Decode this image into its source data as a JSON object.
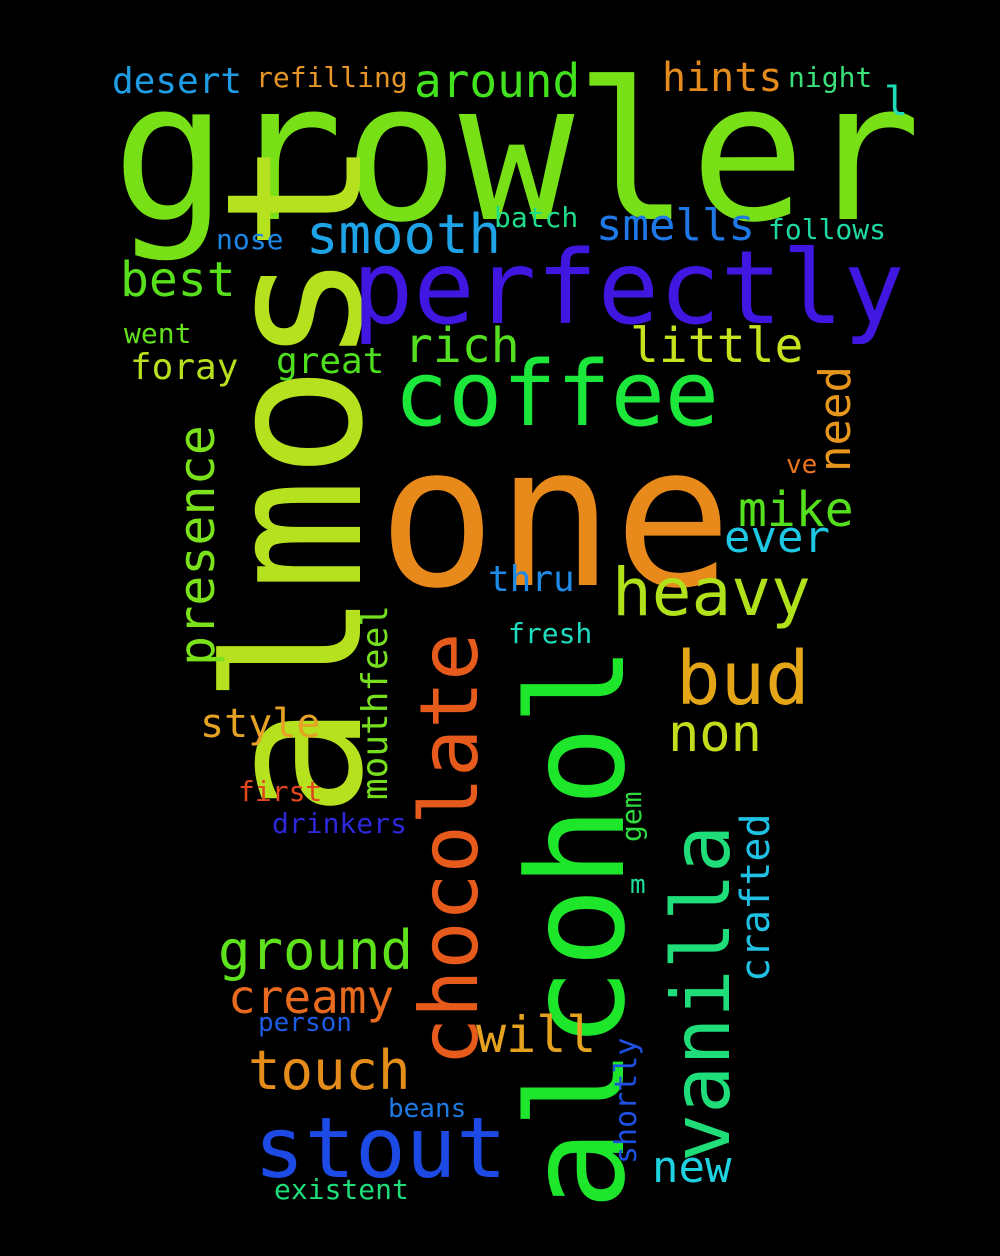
{
  "background": "#000000",
  "words": [
    {
      "text": "growler",
      "color": "#78e016"
    },
    {
      "text": "almost",
      "color": "#b5e11e"
    },
    {
      "text": "one",
      "color": "#e8891b"
    },
    {
      "text": "alcohol",
      "color": "#1ee62a"
    },
    {
      "text": "perfectly",
      "color": "#4017e0"
    },
    {
      "text": "coffee",
      "color": "#1be83b"
    },
    {
      "text": "chocolate",
      "color": "#e65a1c"
    },
    {
      "text": "vanilla",
      "color": "#1fdd78"
    },
    {
      "text": "stout",
      "color": "#1d4ae5"
    },
    {
      "text": "heavy",
      "color": "#b1e11a"
    },
    {
      "text": "bud",
      "color": "#e4a617"
    },
    {
      "text": "smooth",
      "color": "#1da3e6"
    },
    {
      "text": "presence",
      "color": "#7ae11a"
    },
    {
      "text": "ground",
      "color": "#5ee21c"
    },
    {
      "text": "touch",
      "color": "#e48d1a"
    },
    {
      "text": "creamy",
      "color": "#e76a1e"
    },
    {
      "text": "around",
      "color": "#43e21f"
    },
    {
      "text": "best",
      "color": "#58e01c"
    },
    {
      "text": "rich",
      "color": "#53e020"
    },
    {
      "text": "little",
      "color": "#c7e21e"
    },
    {
      "text": "smells",
      "color": "#1e78e6"
    },
    {
      "text": "hints",
      "color": "#e58a1d"
    },
    {
      "text": "mike",
      "color": "#54e01d"
    },
    {
      "text": "ever",
      "color": "#1ec8e4"
    },
    {
      "text": "need",
      "color": "#e6961d"
    },
    {
      "text": "non",
      "color": "#c3dc1c"
    },
    {
      "text": "will",
      "color": "#e4a21e"
    },
    {
      "text": "new",
      "color": "#1fd2e2"
    },
    {
      "text": "style",
      "color": "#e6a224"
    },
    {
      "text": "mouthfeel",
      "color": "#76e01e"
    },
    {
      "text": "crafted",
      "color": "#1fc1e4"
    },
    {
      "text": "desert",
      "color": "#1e9ce4"
    },
    {
      "text": "refilling",
      "color": "#e49628"
    },
    {
      "text": "foray",
      "color": "#b8e01c"
    },
    {
      "text": "great",
      "color": "#4ee01e"
    },
    {
      "text": "thru",
      "color": "#1e8ae6"
    },
    {
      "text": "fresh",
      "color": "#1edcbe"
    },
    {
      "text": "night",
      "color": "#39e07a"
    },
    {
      "text": "batch",
      "color": "#1fdc88"
    },
    {
      "text": "follows",
      "color": "#1ed8a2"
    },
    {
      "text": "nose",
      "color": "#1e86e4"
    },
    {
      "text": "went",
      "color": "#64e01e"
    },
    {
      "text": "ve",
      "color": "#e8741e"
    },
    {
      "text": "first",
      "color": "#e4461e"
    },
    {
      "text": "drinkers",
      "color": "#2e28dc"
    },
    {
      "text": "gem",
      "color": "#2edc3e"
    },
    {
      "text": "m",
      "color": "#1edc9a"
    },
    {
      "text": "shortly",
      "color": "#1e50e2"
    },
    {
      "text": "person",
      "color": "#1e5ce4"
    },
    {
      "text": "beans",
      "color": "#1e7ae2"
    },
    {
      "text": "existent",
      "color": "#1edc7a"
    },
    {
      "text": "l",
      "color": "#1edcb8"
    }
  ]
}
